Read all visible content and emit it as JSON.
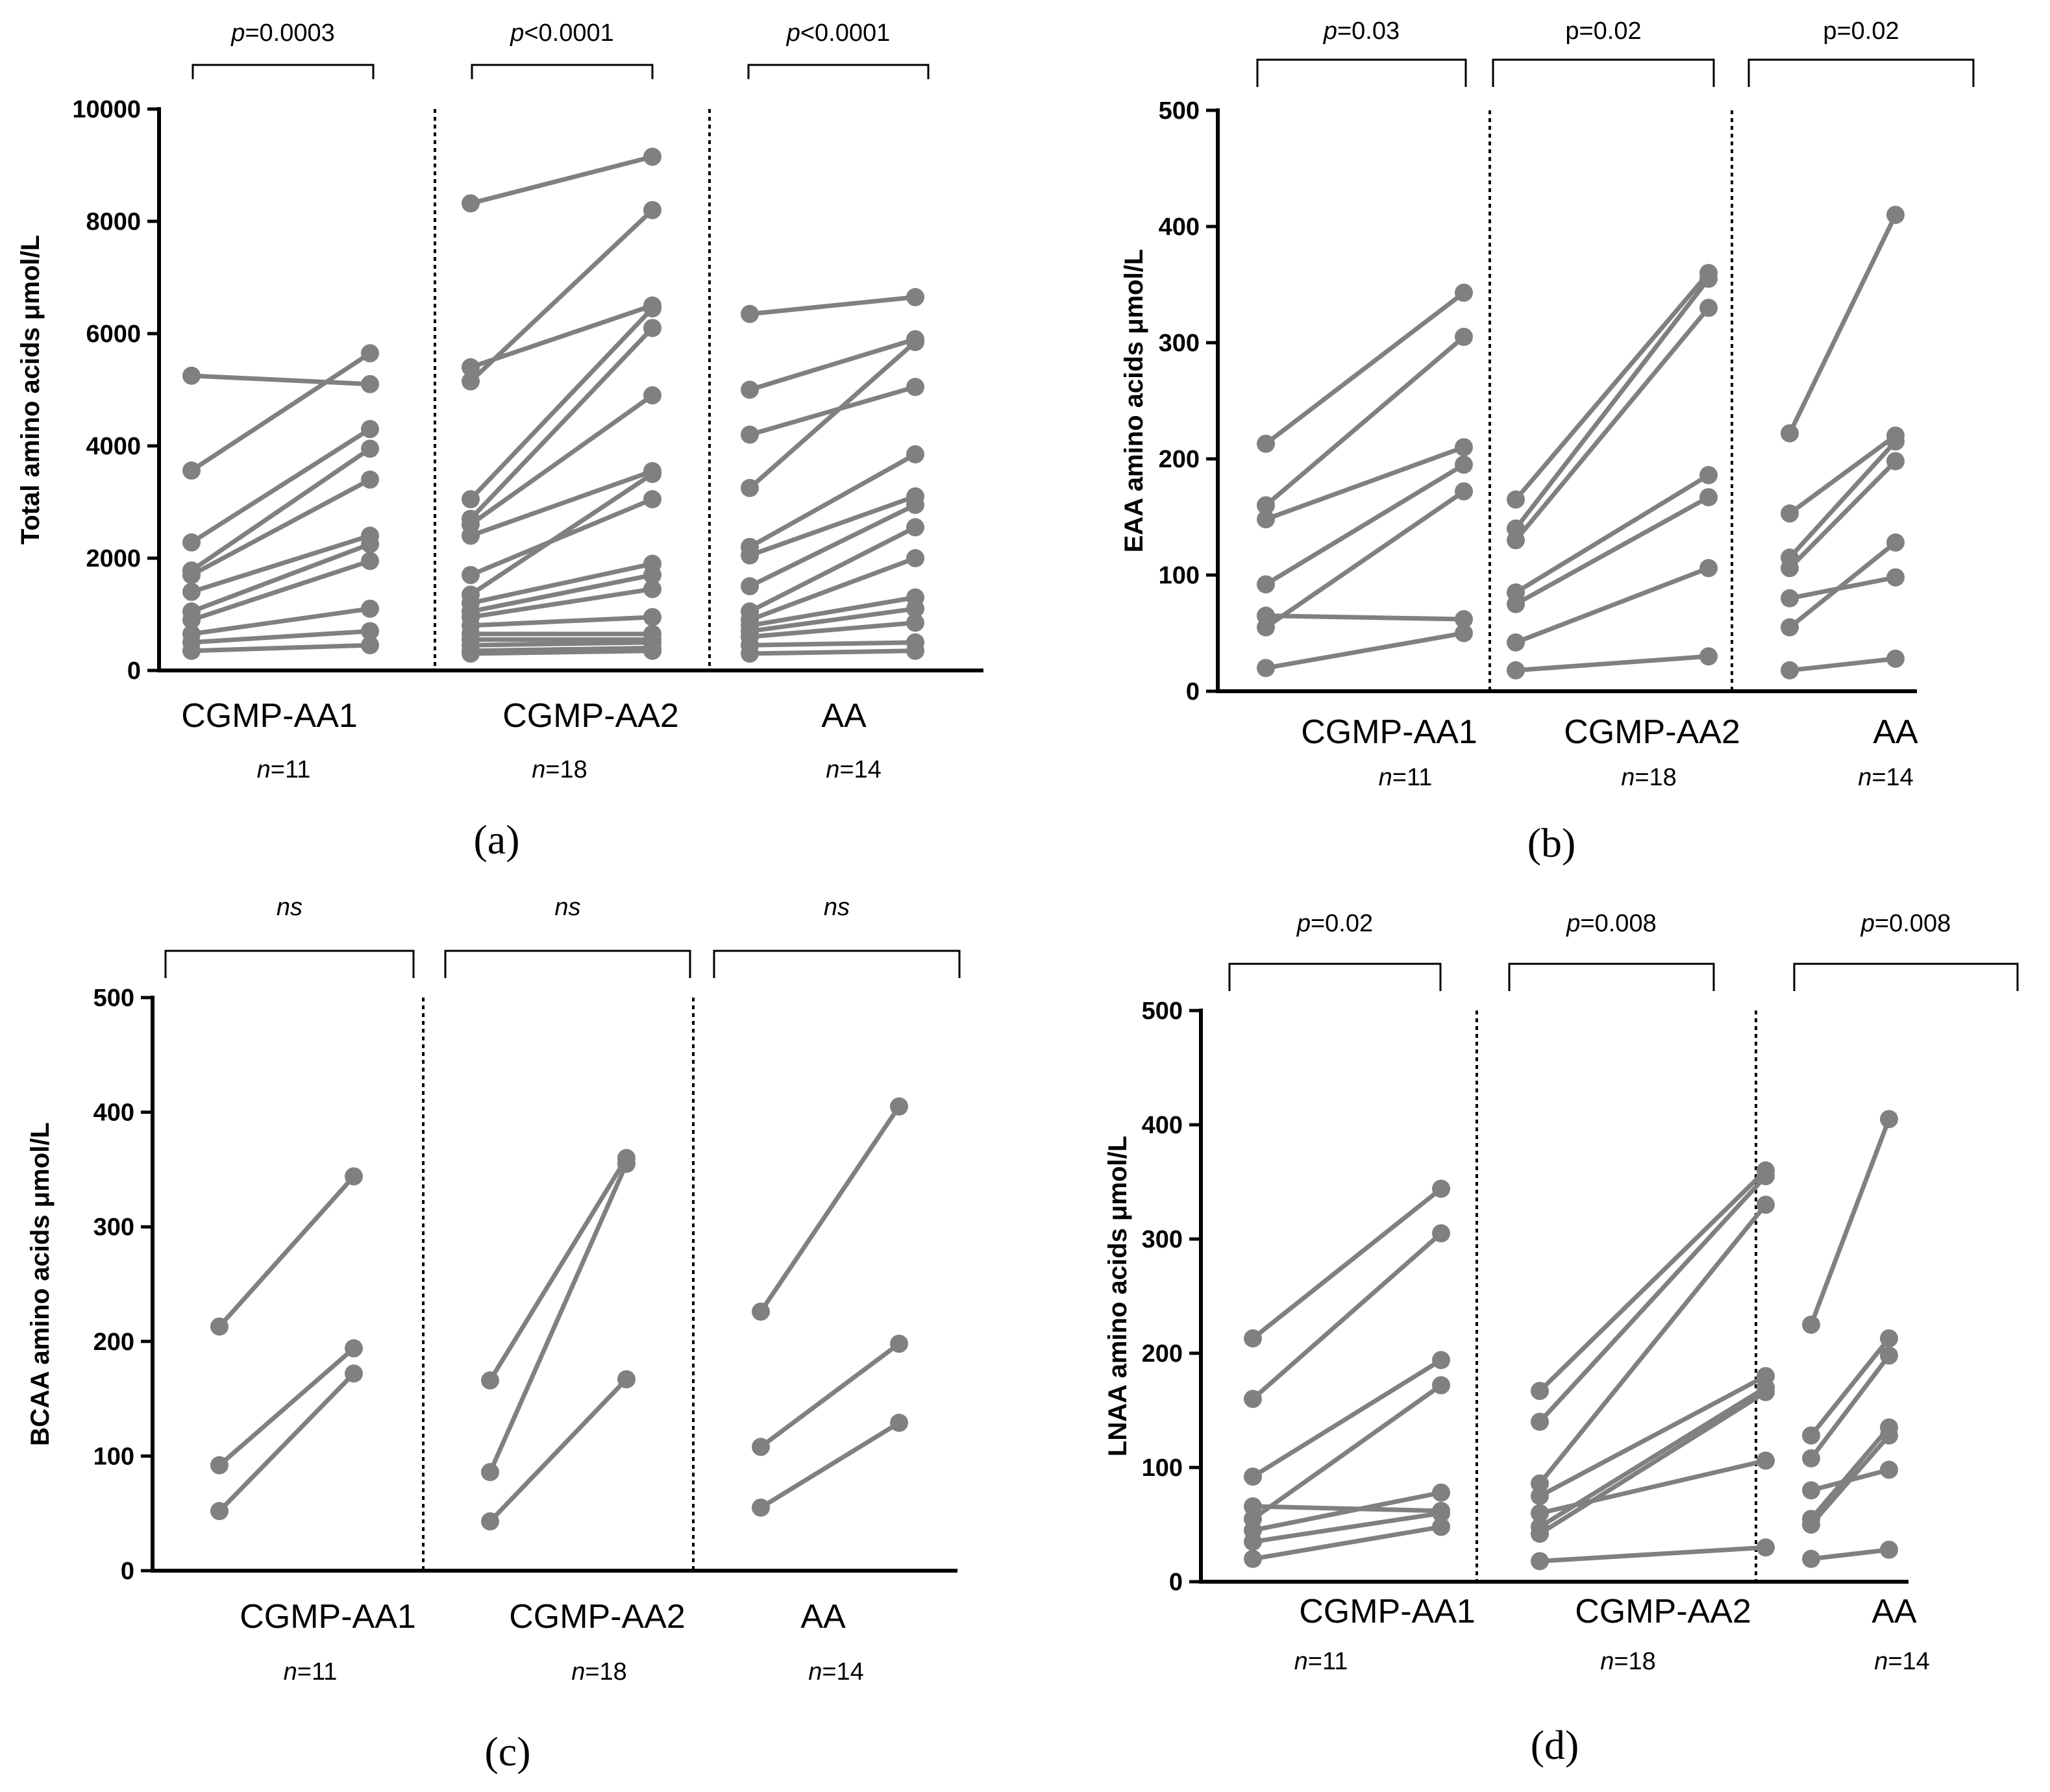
{
  "chart_data": [
    {
      "type": "line",
      "panel": "(a)",
      "ylabel": "Total amino acids μmol/L",
      "ylim": [
        0,
        10000
      ],
      "yticks": [
        0,
        2000,
        4000,
        6000,
        8000,
        10000
      ],
      "groups": [
        {
          "label": "CGMP-AA1",
          "n": "11",
          "p_prefix": "p",
          "p_rest": "=0.0003",
          "pairs": [
            [
              5250,
              5100
            ],
            [
              3560,
              5650
            ],
            [
              2280,
              4300
            ],
            [
              1780,
              3950
            ],
            [
              1700,
              3400
            ],
            [
              1400,
              2400
            ],
            [
              1050,
              2250
            ],
            [
              900,
              1950
            ],
            [
              650,
              1100
            ],
            [
              500,
              700
            ],
            [
              350,
              450
            ]
          ]
        },
        {
          "label": "CGMP-AA2",
          "n": "18",
          "p_prefix": "p",
          "p_rest": "<0.0001",
          "pairs": [
            [
              8320,
              9150
            ],
            [
              5400,
              6500
            ],
            [
              5150,
              8200
            ],
            [
              3050,
              6450
            ],
            [
              2700,
              6100
            ],
            [
              2600,
              4900
            ],
            [
              2400,
              3550
            ],
            [
              1700,
              3050
            ],
            [
              1350,
              3500
            ],
            [
              1200,
              1900
            ],
            [
              1050,
              1700
            ],
            [
              950,
              1450
            ],
            [
              800,
              950
            ],
            [
              650,
              650
            ],
            [
              550,
              550
            ],
            [
              450,
              500
            ],
            [
              350,
              400
            ],
            [
              300,
              350
            ]
          ]
        },
        {
          "label": "AA",
          "n": "14",
          "p_prefix": "p",
          "p_rest": "<0.0001",
          "pairs": [
            [
              6350,
              6650
            ],
            [
              5000,
              5900
            ],
            [
              4200,
              5050
            ],
            [
              3250,
              5850
            ],
            [
              2200,
              3850
            ],
            [
              2050,
              3100
            ],
            [
              1500,
              2950
            ],
            [
              1050,
              2550
            ],
            [
              900,
              2000
            ],
            [
              800,
              1300
            ],
            [
              700,
              1100
            ],
            [
              600,
              850
            ],
            [
              450,
              500
            ],
            [
              300,
              350
            ]
          ]
        }
      ]
    },
    {
      "type": "line",
      "panel": "(b)",
      "ylabel": "EAA amino acids μmol/L",
      "ylim": [
        0,
        500
      ],
      "yticks": [
        0,
        100,
        200,
        300,
        400,
        500
      ],
      "groups": [
        {
          "label": "CGMP-AA1",
          "n": "11",
          "p_prefix": "p",
          "p_rest": "=0.03",
          "pairs": [
            [
              213,
              343
            ],
            [
              160,
              305
            ],
            [
              148,
              210
            ],
            [
              92,
              195
            ],
            [
              65,
              62
            ],
            [
              55,
              172
            ],
            [
              20,
              50
            ]
          ]
        },
        {
          "label": "CGMP-AA2",
          "n": "18",
          "p_prefix": "",
          "p_rest": "p=0.02",
          "pairs": [
            [
              165,
              360
            ],
            [
              140,
              355
            ],
            [
              130,
              330
            ],
            [
              85,
              186
            ],
            [
              75,
              167
            ],
            [
              42,
              106
            ],
            [
              18,
              30
            ]
          ]
        },
        {
          "label": "AA",
          "n": "14",
          "p_prefix": "",
          "p_rest": "p=0.02",
          "pairs": [
            [
              222,
              410
            ],
            [
              153,
              220
            ],
            [
              115,
              215
            ],
            [
              106,
              198
            ],
            [
              80,
              98
            ],
            [
              55,
              128
            ],
            [
              18,
              28
            ]
          ]
        }
      ]
    },
    {
      "type": "line",
      "panel": "(c)",
      "ylabel": "BCAA amino acids μmol/L",
      "ylim": [
        0,
        500
      ],
      "yticks": [
        0,
        100,
        200,
        300,
        400,
        500
      ],
      "groups": [
        {
          "label": "CGMP-AA1",
          "n": "11",
          "p_prefix": "ns",
          "p_rest": "",
          "pairs": [
            [
              213,
              344
            ],
            [
              92,
              194
            ],
            [
              52,
              172
            ]
          ]
        },
        {
          "label": "CGMP-AA2",
          "n": "18",
          "p_prefix": "ns",
          "p_rest": "",
          "pairs": [
            [
              166,
              360
            ],
            [
              86,
              355
            ],
            [
              43,
              167
            ]
          ]
        },
        {
          "label": "AA",
          "n": "14",
          "p_prefix": "ns",
          "p_rest": "",
          "pairs": [
            [
              226,
              405
            ],
            [
              108,
              198
            ],
            [
              55,
              129
            ]
          ]
        }
      ]
    },
    {
      "type": "line",
      "panel": "(d)",
      "ylabel": "LNAA amino acids μmol/L",
      "ylim": [
        0,
        500
      ],
      "yticks": [
        0,
        100,
        200,
        300,
        400,
        500
      ],
      "groups": [
        {
          "label": "CGMP-AA1",
          "n": "11",
          "p_prefix": "p",
          "p_rest": "=0.02",
          "pairs": [
            [
              213,
              344
            ],
            [
              160,
              305
            ],
            [
              92,
              194
            ],
            [
              66,
              62
            ],
            [
              55,
              172
            ],
            [
              45,
              78
            ],
            [
              35,
              60
            ],
            [
              20,
              48
            ]
          ]
        },
        {
          "label": "CGMP-AA2",
          "n": "18",
          "p_prefix": "p",
          "p_rest": "=0.008",
          "pairs": [
            [
              167,
              360
            ],
            [
              140,
              355
            ],
            [
              86,
              330
            ],
            [
              75,
              180
            ],
            [
              48,
              170
            ],
            [
              42,
              166
            ],
            [
              60,
              106
            ],
            [
              18,
              30
            ]
          ]
        },
        {
          "label": "AA",
          "n": "14",
          "p_prefix": "p",
          "p_rest": "=0.008",
          "pairs": [
            [
              225,
              405
            ],
            [
              128,
              213
            ],
            [
              108,
              198
            ],
            [
              80,
              98
            ],
            [
              55,
              135
            ],
            [
              50,
              128
            ],
            [
              20,
              28
            ]
          ]
        }
      ]
    }
  ]
}
